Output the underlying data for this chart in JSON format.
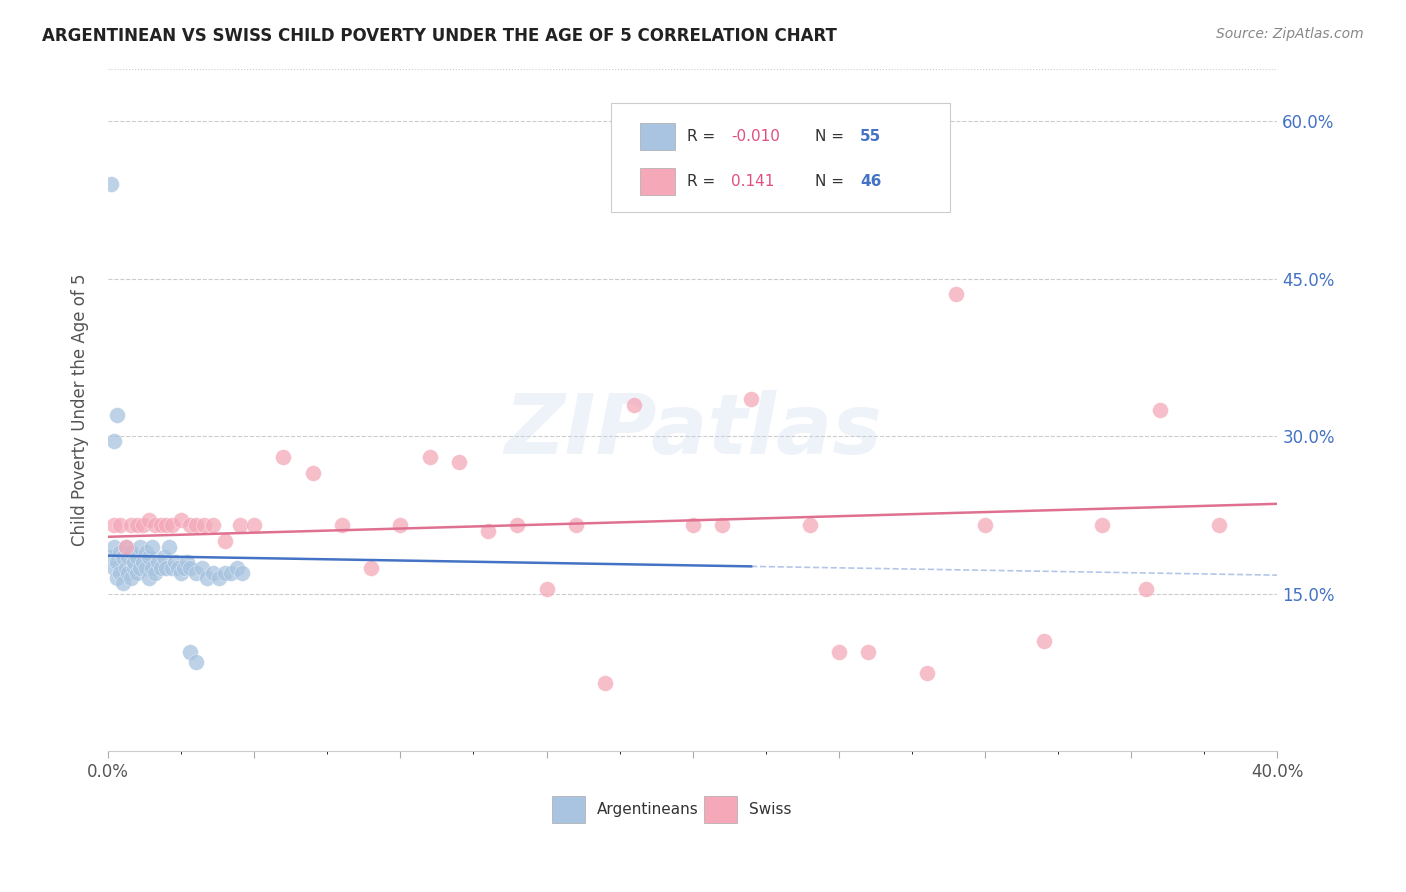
{
  "title": "ARGENTINEAN VS SWISS CHILD POVERTY UNDER THE AGE OF 5 CORRELATION CHART",
  "source": "Source: ZipAtlas.com",
  "ylabel": "Child Poverty Under the Age of 5",
  "watermark": "ZIPatlas",
  "xlim": [
    0.0,
    0.4
  ],
  "ylim": [
    0.0,
    0.65
  ],
  "yticks": [
    0.15,
    0.3,
    0.45,
    0.6
  ],
  "ytick_labels": [
    "15.0%",
    "30.0%",
    "45.0%",
    "60.0%"
  ],
  "xtick_labels": [
    "0.0%",
    "",
    "",
    "",
    "",
    "",
    "",
    "",
    "",
    "40.0%"
  ],
  "argentina_color": "#a8c4e0",
  "swiss_color": "#f4a8b8",
  "argentina_line_color": "#4472c4",
  "swiss_line_color": "#e07090",
  "argentina_R": -0.01,
  "argentina_N": 55,
  "swiss_R": 0.141,
  "swiss_N": 46,
  "legend_R_color": "#e05080",
  "legend_N_color": "#4472c4",
  "background_color": "#ffffff",
  "grid_color": "#cccccc"
}
